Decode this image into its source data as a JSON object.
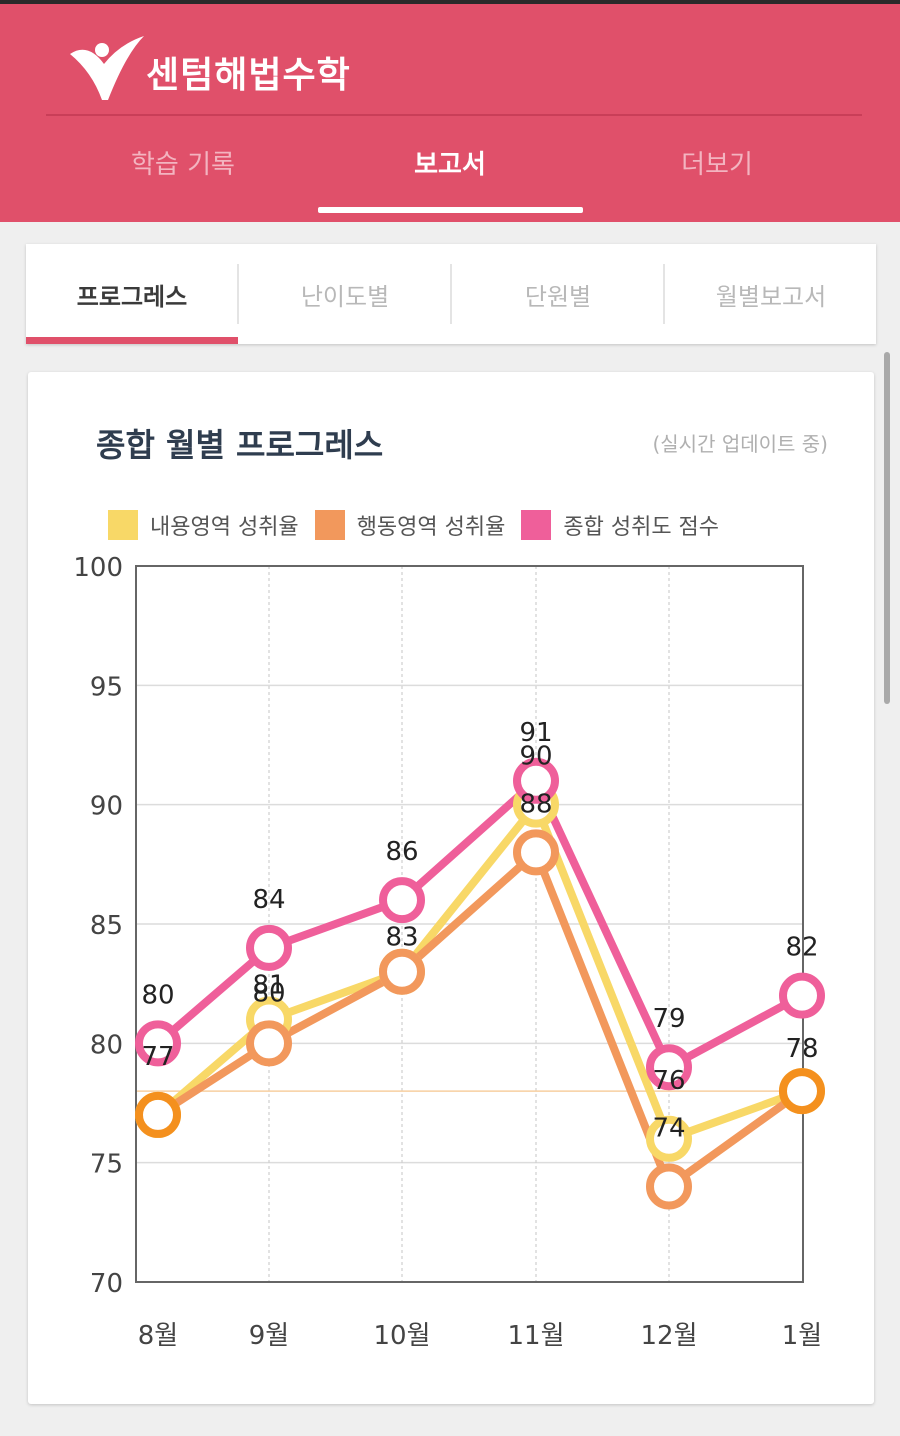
{
  "app": {
    "title": "센텀해법수학"
  },
  "main_tabs": [
    {
      "label": "학습 기록",
      "active": false
    },
    {
      "label": "보고서",
      "active": true
    },
    {
      "label": "더보기",
      "active": false
    }
  ],
  "sub_tabs": [
    {
      "label": "프로그레스",
      "active": true
    },
    {
      "label": "난이도별",
      "active": false
    },
    {
      "label": "단원별",
      "active": false
    },
    {
      "label": "월별보고서",
      "active": false
    }
  ],
  "card": {
    "title": "종합 월별 프로그레스",
    "note": "(실시간 업데이트 중)"
  },
  "colors": {
    "brand": "#e0506a",
    "content": "#f8d867",
    "behavior": "#f2985c",
    "overall": "#ef5f9a",
    "behavior_last_points": "#f4901e"
  },
  "chart_data": {
    "type": "line",
    "categories": [
      "8월",
      "9월",
      "10월",
      "11월",
      "12월",
      "1월"
    ],
    "ylim": [
      70,
      100
    ],
    "yticks": [
      100,
      95,
      90,
      85,
      80,
      75,
      70
    ],
    "series": [
      {
        "name": "내용영역 성취율",
        "key": "content",
        "values": [
          77,
          81,
          83,
          90,
          76,
          78
        ],
        "labels": [
          "",
          "81",
          "83",
          "90",
          "76",
          ""
        ]
      },
      {
        "name": "행동영역 성취율",
        "key": "behavior",
        "values": [
          77,
          80,
          83,
          88,
          74,
          78
        ],
        "labels": [
          "77",
          "80",
          "",
          "88",
          "74",
          "78"
        ]
      },
      {
        "name": "종합 성취도 점수",
        "key": "overall",
        "values": [
          80,
          84,
          86,
          91,
          79,
          82
        ],
        "labels": [
          "80",
          "84",
          "86",
          "91",
          "79",
          "82"
        ]
      }
    ],
    "reference_line": 78,
    "grid": true,
    "legend_position": "top-left"
  }
}
